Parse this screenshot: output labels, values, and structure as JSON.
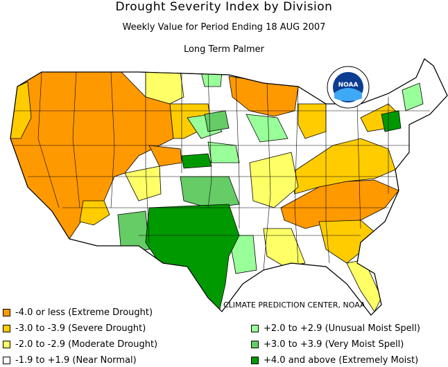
{
  "title": "Drought Severity Index by Division",
  "subtitle": "Weekly Value for Period Ending 18 AUG 2007",
  "index_name": "Long Term Palmer",
  "logo_text": "NOAA",
  "credit": "CLIMATE PREDICTION CENTER, NOAA",
  "colors": {
    "extreme_drought": "#ff9900",
    "severe_drought": "#ffcc00",
    "moderate_drought": "#ffff66",
    "near_normal": "#ffffff",
    "unusual_moist": "#99ff99",
    "very_moist": "#66cc66",
    "extremely_moist": "#009900"
  },
  "legend": [
    {
      "label": "-4.0 or less (Extreme Drought)",
      "color": "#ff9900"
    },
    {
      "label": "-3.0 to -3.9 (Severe Drought)",
      "color": "#ffcc00"
    },
    {
      "label": "-2.0 to -2.9 (Moderate Drought)",
      "color": "#ffff66"
    },
    {
      "label": "-1.9 to +1.9 (Near Normal)",
      "color": "#ffffff"
    },
    {
      "label": "+2.0 to +2.9 (Unusual Moist Spell)",
      "color": "#99ff99"
    },
    {
      "label": "+3.0 to +3.9 (Very Moist Spell)",
      "color": "#66cc66"
    },
    {
      "label": "+4.0 and above (Extremely Moist)",
      "color": "#009900"
    }
  ]
}
